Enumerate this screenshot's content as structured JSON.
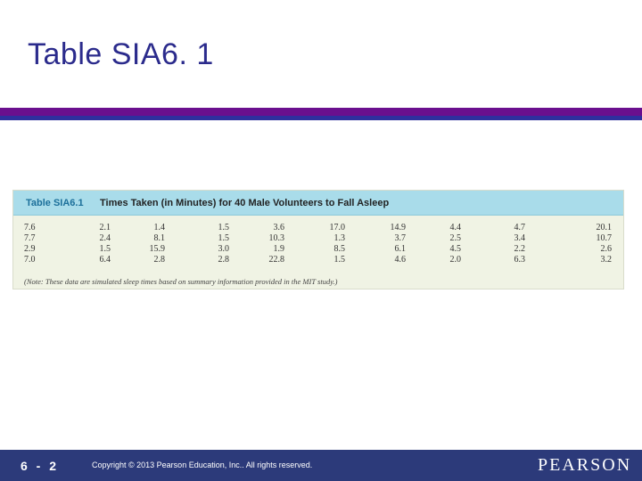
{
  "slide": {
    "title": "Table SIA6. 1"
  },
  "table": {
    "label": "Table SIA6.1",
    "caption": "Times Taken (in Minutes) for 40 Male Volunteers to Fall Asleep",
    "rows": [
      [
        "7.6",
        "2.1",
        "1.4",
        "1.5",
        "3.6",
        "17.0",
        "14.9",
        "4.4",
        "4.7",
        "20.1"
      ],
      [
        "7.7",
        "2.4",
        "8.1",
        "1.5",
        "10.3",
        "1.3",
        "3.7",
        "2.5",
        "3.4",
        "10.7"
      ],
      [
        "2.9",
        "1.5",
        "15.9",
        "3.0",
        "1.9",
        "8.5",
        "6.1",
        "4.5",
        "2.2",
        "2.6"
      ],
      [
        "7.0",
        "6.4",
        "2.8",
        "2.8",
        "22.8",
        "1.5",
        "4.6",
        "2.0",
        "6.3",
        "3.2"
      ]
    ],
    "note": "(Note: These data are simulated sleep times based on summary information provided in the MIT study.)"
  },
  "footer": {
    "slide_number": "6 - 2",
    "copyright": "Copyright © 2013 Pearson Education, Inc.. All rights reserved.",
    "brand": "PEARSON"
  },
  "colors": {
    "title": "#2b2b8c",
    "rule_purple": "#6a0f8e",
    "rule_blue": "#2f2f9e",
    "table_header": "#a9dcea",
    "table_body": "#f0f3e4",
    "footer": "#2c3a7a"
  }
}
